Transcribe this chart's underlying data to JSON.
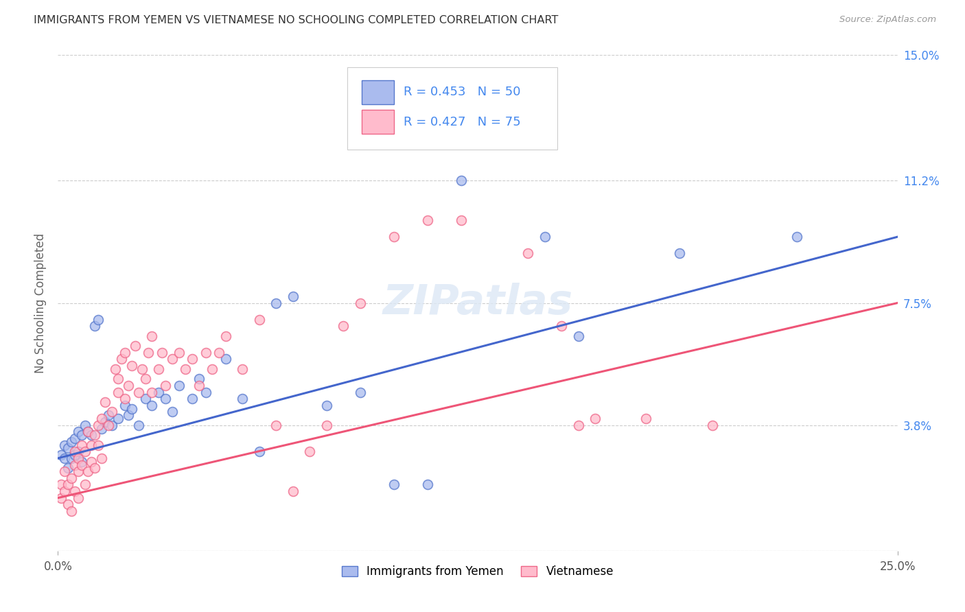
{
  "title": "IMMIGRANTS FROM YEMEN VS VIETNAMESE NO SCHOOLING COMPLETED CORRELATION CHART",
  "source": "Source: ZipAtlas.com",
  "ylabel": "No Schooling Completed",
  "xmin": 0.0,
  "xmax": 0.25,
  "ymin": 0.0,
  "ymax": 0.15,
  "ytick_vals": [
    0.0,
    0.038,
    0.075,
    0.112,
    0.15
  ],
  "ytick_labels": [
    "",
    "3.8%",
    "7.5%",
    "11.2%",
    "15.0%"
  ],
  "xtick_vals": [
    0.0,
    0.25
  ],
  "xtick_labels": [
    "0.0%",
    "25.0%"
  ],
  "series1_label": "Immigrants from Yemen",
  "series2_label": "Vietnamese",
  "R1": 0.453,
  "N1": 50,
  "R2": 0.427,
  "N2": 75,
  "color1_face": "#aabbee",
  "color1_edge": "#5577cc",
  "color2_face": "#ffbbcc",
  "color2_edge": "#ee6688",
  "line_color1": "#4466cc",
  "line_color2": "#ee5577",
  "watermark": "ZIPatlas",
  "background_color": "#ffffff",
  "series1_x": [
    0.001,
    0.002,
    0.002,
    0.003,
    0.003,
    0.004,
    0.004,
    0.005,
    0.005,
    0.006,
    0.006,
    0.007,
    0.007,
    0.008,
    0.009,
    0.01,
    0.011,
    0.012,
    0.013,
    0.014,
    0.015,
    0.016,
    0.018,
    0.02,
    0.021,
    0.022,
    0.024,
    0.026,
    0.028,
    0.03,
    0.032,
    0.034,
    0.036,
    0.04,
    0.042,
    0.044,
    0.05,
    0.055,
    0.06,
    0.065,
    0.07,
    0.08,
    0.09,
    0.1,
    0.11,
    0.12,
    0.145,
    0.155,
    0.185,
    0.22
  ],
  "series1_y": [
    0.029,
    0.032,
    0.028,
    0.031,
    0.025,
    0.033,
    0.028,
    0.034,
    0.029,
    0.036,
    0.03,
    0.035,
    0.027,
    0.038,
    0.036,
    0.035,
    0.068,
    0.07,
    0.037,
    0.039,
    0.041,
    0.038,
    0.04,
    0.044,
    0.041,
    0.043,
    0.038,
    0.046,
    0.044,
    0.048,
    0.046,
    0.042,
    0.05,
    0.046,
    0.052,
    0.048,
    0.058,
    0.046,
    0.03,
    0.075,
    0.077,
    0.044,
    0.048,
    0.02,
    0.02,
    0.112,
    0.095,
    0.065,
    0.09,
    0.095
  ],
  "series2_x": [
    0.001,
    0.001,
    0.002,
    0.002,
    0.003,
    0.003,
    0.004,
    0.004,
    0.005,
    0.005,
    0.005,
    0.006,
    0.006,
    0.006,
    0.007,
    0.007,
    0.008,
    0.008,
    0.009,
    0.009,
    0.01,
    0.01,
    0.011,
    0.011,
    0.012,
    0.012,
    0.013,
    0.013,
    0.014,
    0.015,
    0.016,
    0.017,
    0.018,
    0.018,
    0.019,
    0.02,
    0.02,
    0.021,
    0.022,
    0.023,
    0.024,
    0.025,
    0.026,
    0.027,
    0.028,
    0.028,
    0.03,
    0.031,
    0.032,
    0.034,
    0.036,
    0.038,
    0.04,
    0.042,
    0.044,
    0.046,
    0.048,
    0.05,
    0.055,
    0.06,
    0.065,
    0.07,
    0.075,
    0.08,
    0.085,
    0.09,
    0.1,
    0.11,
    0.12,
    0.14,
    0.15,
    0.155,
    0.16,
    0.175,
    0.195
  ],
  "series2_y": [
    0.02,
    0.016,
    0.018,
    0.024,
    0.014,
    0.02,
    0.012,
    0.022,
    0.026,
    0.018,
    0.03,
    0.024,
    0.028,
    0.016,
    0.032,
    0.026,
    0.03,
    0.02,
    0.036,
    0.024,
    0.032,
    0.027,
    0.035,
    0.025,
    0.038,
    0.032,
    0.04,
    0.028,
    0.045,
    0.038,
    0.042,
    0.055,
    0.048,
    0.052,
    0.058,
    0.046,
    0.06,
    0.05,
    0.056,
    0.062,
    0.048,
    0.055,
    0.052,
    0.06,
    0.048,
    0.065,
    0.055,
    0.06,
    0.05,
    0.058,
    0.06,
    0.055,
    0.058,
    0.05,
    0.06,
    0.055,
    0.06,
    0.065,
    0.055,
    0.07,
    0.038,
    0.018,
    0.03,
    0.038,
    0.068,
    0.075,
    0.095,
    0.1,
    0.1,
    0.09,
    0.068,
    0.038,
    0.04,
    0.04,
    0.038
  ]
}
